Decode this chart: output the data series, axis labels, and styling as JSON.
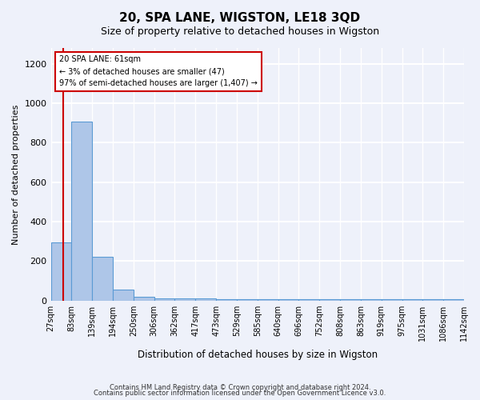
{
  "title": "20, SPA LANE, WIGSTON, LE18 3QD",
  "subtitle": "Size of property relative to detached houses in Wigston",
  "xlabel": "Distribution of detached houses by size in Wigston",
  "ylabel": "Number of detached properties",
  "bar_color": "#aec6e8",
  "bar_edge_color": "#5b9bd5",
  "bin_edges": [
    "27sqm",
    "83sqm",
    "139sqm",
    "194sqm",
    "250sqm",
    "306sqm",
    "362sqm",
    "417sqm",
    "473sqm",
    "529sqm",
    "585sqm",
    "640sqm",
    "696sqm",
    "752sqm",
    "808sqm",
    "863sqm",
    "919sqm",
    "975sqm",
    "1031sqm",
    "1086sqm",
    "1142sqm"
  ],
  "values": [
    295,
    905,
    220,
    55,
    20,
    10,
    10,
    10,
    5,
    5,
    5,
    5,
    5,
    5,
    5,
    5,
    5,
    5,
    5,
    5
  ],
  "bin_edges_numeric": [
    27,
    83,
    139,
    194,
    250,
    306,
    362,
    417,
    473,
    529,
    585,
    640,
    696,
    752,
    808,
    863,
    919,
    975,
    1031,
    1086,
    1142
  ],
  "ylim": [
    0,
    1280
  ],
  "yticks": [
    0,
    200,
    400,
    600,
    800,
    1000,
    1200
  ],
  "property_size": 61,
  "annotation_line1": "20 SPA LANE: 61sqm",
  "annotation_line2": "← 3% of detached houses are smaller (47)",
  "annotation_line3": "97% of semi-detached houses are larger (1,407) →",
  "red_line_color": "#cc0000",
  "annotation_box_color": "#ffffff",
  "annotation_box_edge": "#cc0000",
  "footer1": "Contains HM Land Registry data © Crown copyright and database right 2024.",
  "footer2": "Contains public sector information licensed under the Open Government Licence v3.0.",
  "background_color": "#eef1fa",
  "grid_color": "#ffffff"
}
